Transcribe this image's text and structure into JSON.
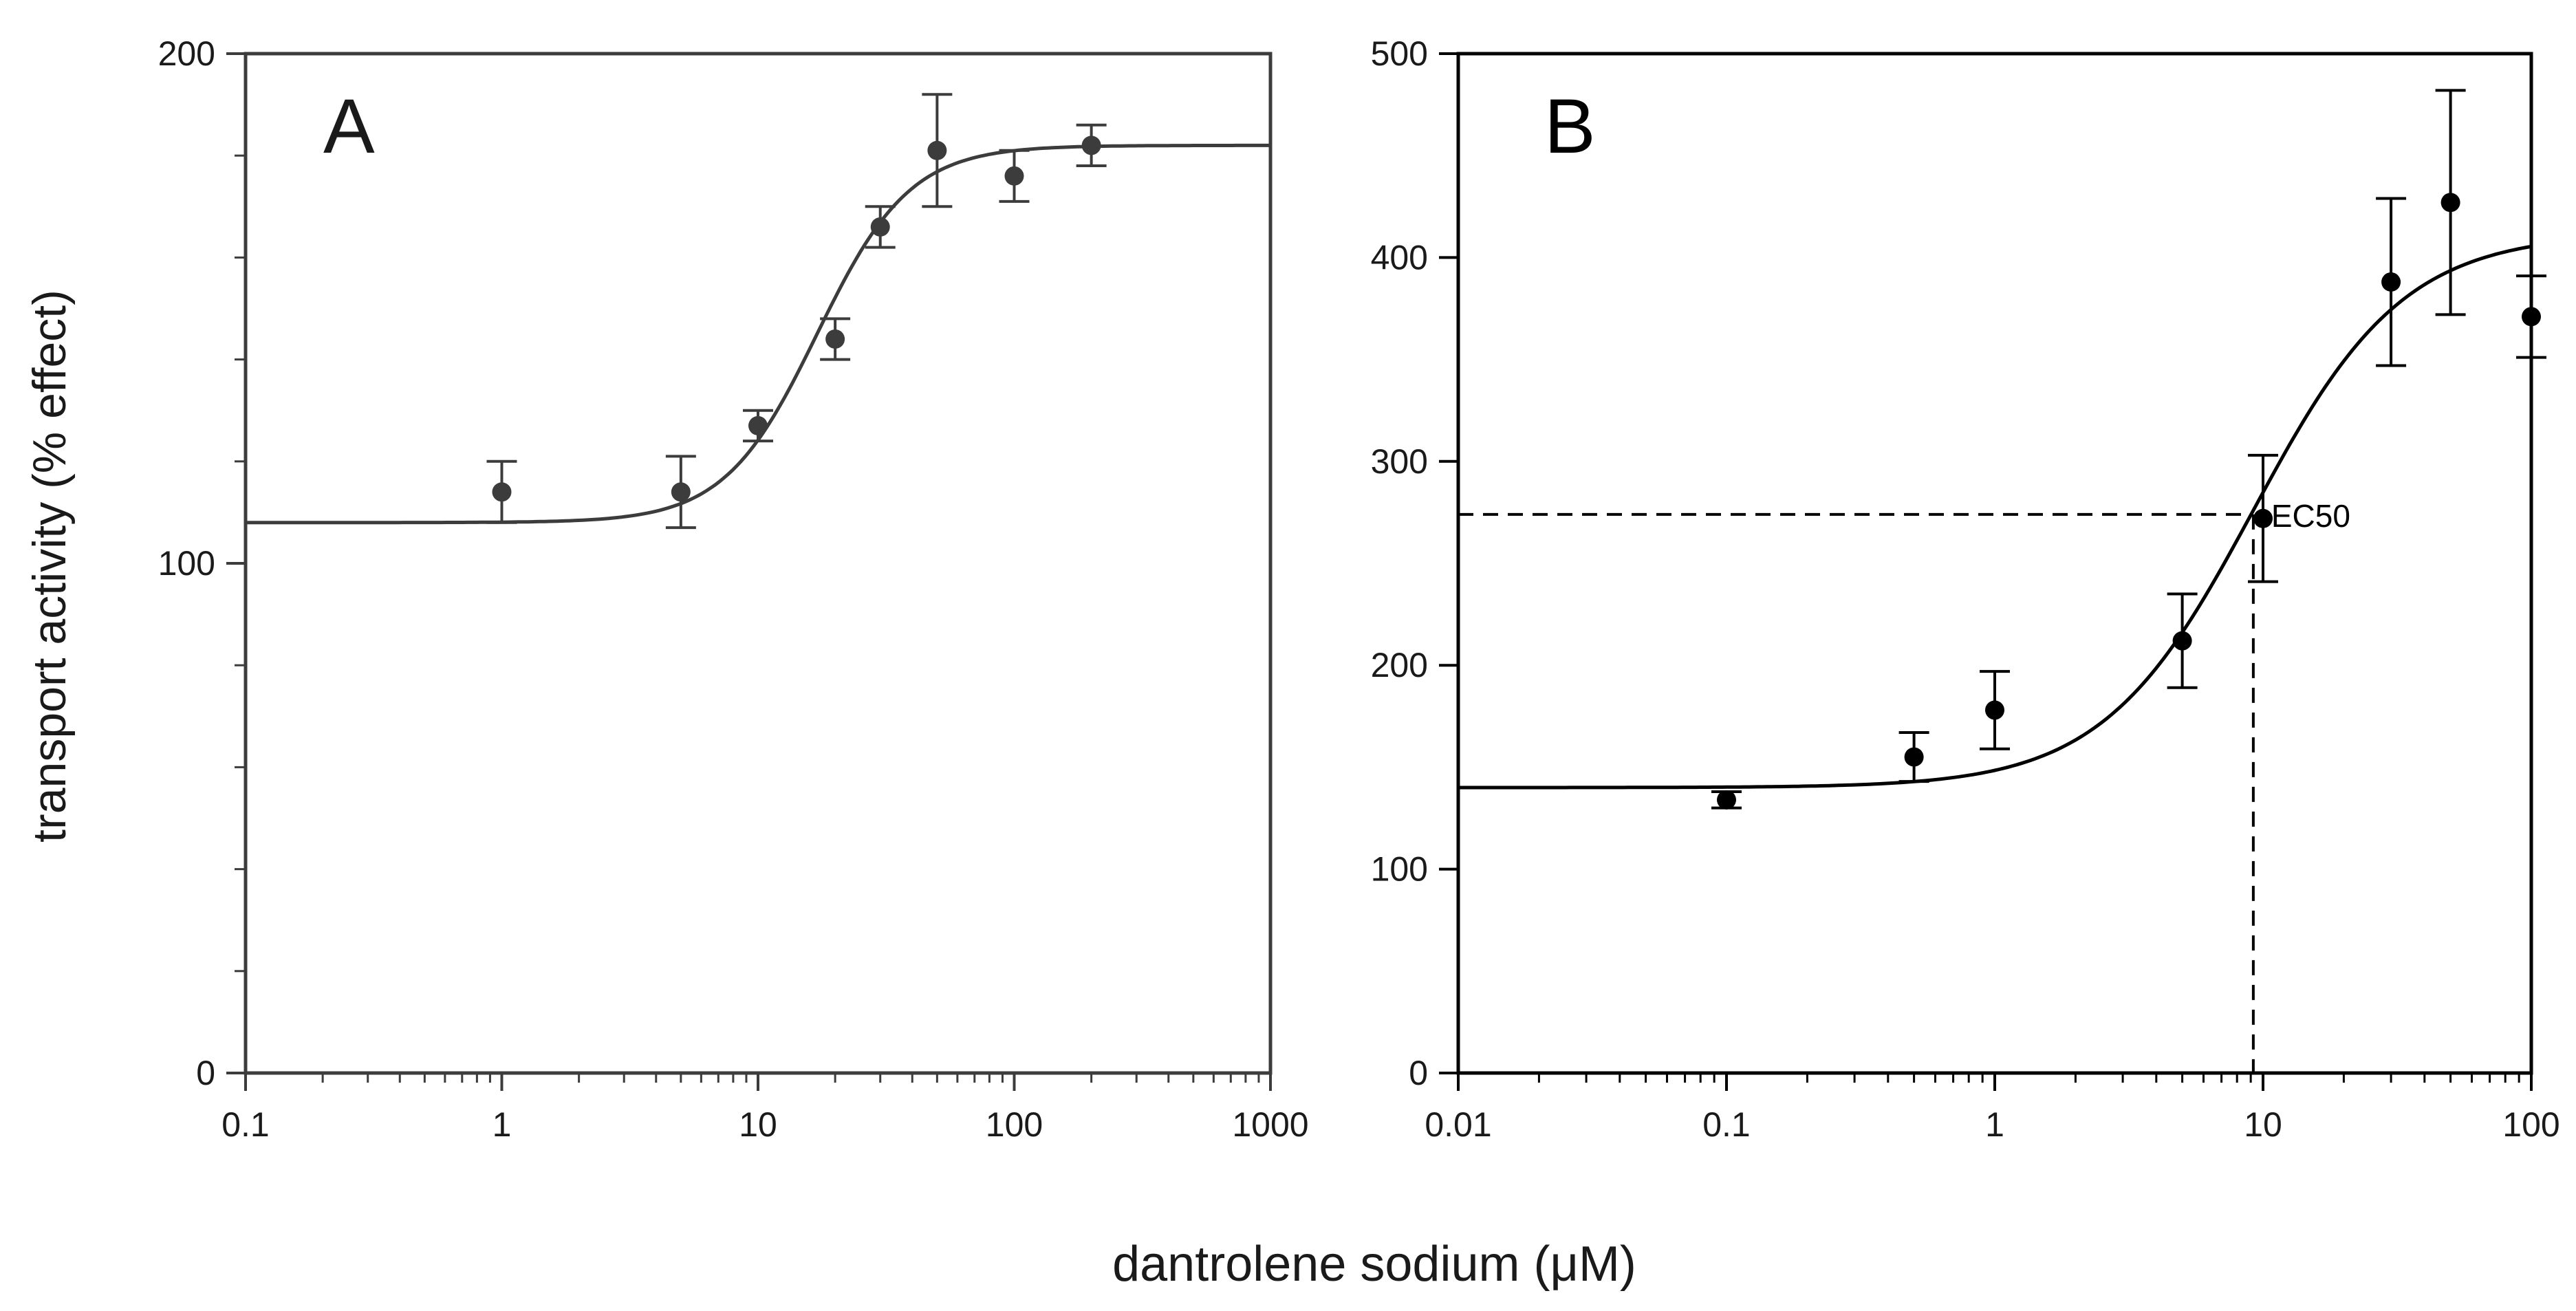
{
  "figure": {
    "ylabel": "transport activity (% effect)",
    "xlabel": "dantrolene sodium (μM)"
  },
  "chart_data": [
    {
      "panel": "A",
      "type": "scatter",
      "x_scale": "log",
      "xlim": [
        0.1,
        1000
      ],
      "ylim": [
        0,
        200
      ],
      "x_ticks": [
        0.1,
        1,
        10,
        100,
        1000
      ],
      "x_tick_labels": [
        "0.1",
        "1",
        "10",
        "100",
        "1000"
      ],
      "y_ticks": [
        0,
        100,
        200
      ],
      "y_tick_labels": [
        "0",
        "100",
        "200"
      ],
      "y_minor_ticks": [
        20,
        40,
        60,
        80,
        120,
        140,
        160,
        180
      ],
      "color": "#3c3c3c",
      "points": [
        {
          "x": 1,
          "y": 114,
          "err": 6
        },
        {
          "x": 5,
          "y": 114,
          "err": 7
        },
        {
          "x": 10,
          "y": 127,
          "err": 3
        },
        {
          "x": 20,
          "y": 144,
          "err": 4
        },
        {
          "x": 30,
          "y": 166,
          "err": 4
        },
        {
          "x": 50,
          "y": 181,
          "err": 11
        },
        {
          "x": 100,
          "y": 176,
          "err": 5
        },
        {
          "x": 200,
          "y": 182,
          "err": 4
        }
      ],
      "fit": {
        "bottom": 108,
        "top": 182,
        "ec50": 17,
        "hill": 2.4
      }
    },
    {
      "panel": "B",
      "type": "scatter",
      "x_scale": "log",
      "xlim": [
        0.01,
        100
      ],
      "ylim": [
        0,
        500
      ],
      "x_ticks": [
        0.01,
        0.1,
        1,
        10,
        100
      ],
      "x_tick_labels": [
        "0.01",
        "0.1",
        "1",
        "10",
        "100"
      ],
      "y_ticks": [
        0,
        100,
        200,
        300,
        400,
        500
      ],
      "y_tick_labels": [
        "0",
        "100",
        "200",
        "300",
        "400",
        "500"
      ],
      "color": "#000000",
      "points": [
        {
          "x": 0.1,
          "y": 134,
          "err": 4
        },
        {
          "x": 0.5,
          "y": 155,
          "err": 12
        },
        {
          "x": 1,
          "y": 178,
          "err": 19
        },
        {
          "x": 5,
          "y": 212,
          "err": 23
        },
        {
          "x": 10,
          "y": 272,
          "err": 31
        },
        {
          "x": 30,
          "y": 388,
          "err": 41
        },
        {
          "x": 50,
          "y": 427,
          "err": 55
        },
        {
          "x": 100,
          "y": 371,
          "err": 20
        }
      ],
      "fit": {
        "bottom": 140,
        "top": 412,
        "ec50": 9.2,
        "hill": 1.55
      },
      "ec50_marker": {
        "label": "EC50",
        "x": 9.2,
        "y": 274
      }
    }
  ]
}
